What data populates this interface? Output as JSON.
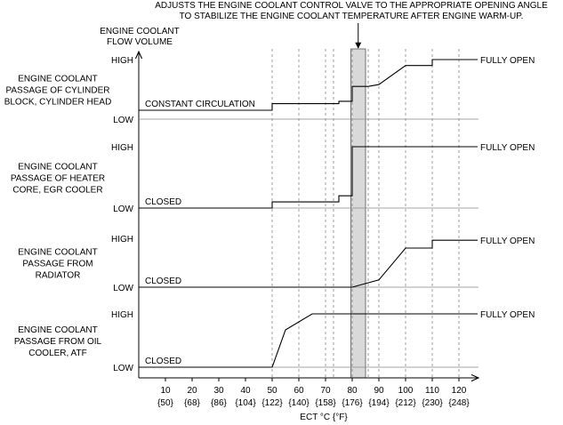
{
  "chart_data": {
    "type": "line",
    "annotation": [
      "ADJUSTS THE ENGINE COOLANT CONTROL VALVE TO THE APPROPRIATE OPENING ANGLE",
      "TO STABILIZE THE ENGINE COOLANT TEMPERATURE AFTER ENGINE WARM-UP."
    ],
    "ylabel": [
      "ENGINE COOLANT",
      "FLOW VOLUME"
    ],
    "xlabel": "ECT °C {°F}",
    "xlim": [
      0,
      127
    ],
    "x_ticks_c": [
      "10",
      "20",
      "30",
      "40",
      "50",
      "60",
      "70",
      "80",
      "90",
      "100",
      "110",
      "120"
    ],
    "x_ticks_f": [
      "{50}",
      "{68}",
      "{86}",
      "{104}",
      "{122}",
      "{140}",
      "{158}",
      "{176}",
      "{194}",
      "{212}",
      "{230}",
      "{248}"
    ],
    "dashed_gridlines_at": [
      50,
      60,
      70,
      73,
      80,
      86,
      90,
      100,
      110,
      120
    ],
    "highlight_band": [
      79.5,
      85
    ],
    "high_label": "HIGH",
    "low_label": "LOW",
    "panels": [
      {
        "label": [
          "ENGINE COOLANT",
          "PASSAGE OF CYLINDER",
          "BLOCK, CYLINDER HEAD"
        ],
        "start_label": "CONSTANT CIRCULATION",
        "end_label": "FULLY OPEN",
        "ylim": [
          0,
          1
        ],
        "points": [
          [
            0,
            0.15
          ],
          [
            50,
            0.15
          ],
          [
            50,
            0.26
          ],
          [
            75,
            0.26
          ],
          [
            75,
            0.3
          ],
          [
            80,
            0.3
          ],
          [
            80,
            0.55
          ],
          [
            86,
            0.55
          ],
          [
            90,
            0.58
          ],
          [
            100,
            0.9
          ],
          [
            110,
            0.9
          ],
          [
            110,
            1.0
          ],
          [
            127,
            1.0
          ]
        ]
      },
      {
        "label": [
          "ENGINE COOLANT",
          "PASSAGE OF HEATER",
          "CORE, EGR COOLER"
        ],
        "start_label": "CLOSED",
        "end_label": "FULLY OPEN",
        "ylim": [
          0,
          1
        ],
        "points": [
          [
            0,
            0.0
          ],
          [
            50,
            0.0
          ],
          [
            50,
            0.1
          ],
          [
            75,
            0.1
          ],
          [
            75,
            0.2
          ],
          [
            80,
            0.2
          ],
          [
            80,
            1.0
          ],
          [
            127,
            1.0
          ]
        ]
      },
      {
        "label": [
          "ENGINE COOLANT",
          "PASSAGE FROM",
          "RADIATOR"
        ],
        "start_label": "CLOSED",
        "end_label": "FULLY OPEN",
        "ylim": [
          0,
          1
        ],
        "points": [
          [
            0,
            0.0
          ],
          [
            80,
            0.0
          ],
          [
            90,
            0.15
          ],
          [
            100,
            0.8
          ],
          [
            110,
            0.8
          ],
          [
            110,
            0.96
          ],
          [
            127,
            0.96
          ]
        ]
      },
      {
        "label": [
          "ENGINE COOLANT",
          "PASSAGE FROM OIL",
          "COOLER, ATF"
        ],
        "start_label": "CLOSED",
        "end_label": "FULLY OPEN",
        "ylim": [
          0,
          1
        ],
        "points": [
          [
            0,
            0.0
          ],
          [
            50,
            0.0
          ],
          [
            55,
            0.7
          ],
          [
            65,
            1.0
          ],
          [
            127,
            1.0
          ]
        ]
      }
    ]
  }
}
